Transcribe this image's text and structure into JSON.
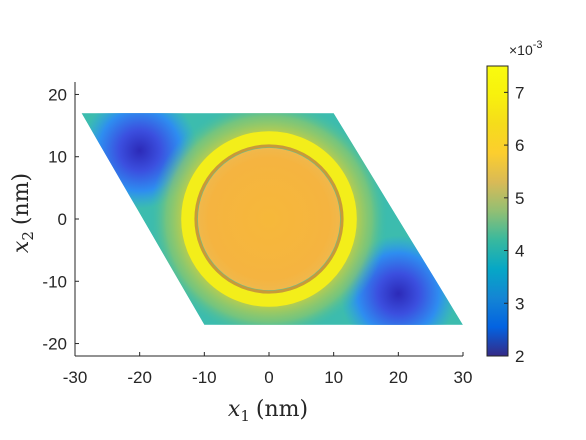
{
  "chart_data": {
    "type": "heatmap",
    "title": "",
    "xlabel": {
      "symbol": "x",
      "subscript": "1",
      "unit": "(nm)"
    },
    "ylabel": {
      "symbol": "x",
      "subscript": "2",
      "unit": "(nm)"
    },
    "xlim": [
      -30,
      30
    ],
    "ylim": [
      -22,
      22
    ],
    "xticks": [
      -30,
      -20,
      -10,
      0,
      10,
      20,
      30
    ],
    "yticks": [
      -20,
      -10,
      0,
      10,
      20
    ],
    "xtick_labels": [
      "-30",
      "-20",
      "-10",
      "0",
      "10",
      "20",
      "30"
    ],
    "ytick_labels": [
      "-20",
      "-10",
      "0",
      "10",
      "20"
    ],
    "domain": {
      "shape": "rhombus",
      "vertices": [
        [
          -29,
          17
        ],
        [
          10,
          17
        ],
        [
          30,
          -17
        ],
        [
          -10,
          -17
        ]
      ]
    },
    "features": [
      {
        "kind": "disk",
        "center": [
          0,
          0
        ],
        "radius": 11,
        "value": 0.0063
      },
      {
        "kind": "ring",
        "center": [
          0,
          0
        ],
        "radius": 12.5,
        "value": 0.0074
      },
      {
        "kind": "minimum",
        "center": [
          -20,
          11
        ],
        "value": 0.0021
      },
      {
        "kind": "minimum",
        "center": [
          20,
          -12
        ],
        "value": 0.0021
      }
    ],
    "background_value": 0.0049,
    "colorbar": {
      "colormap": "parula",
      "clim": [
        0.002,
        0.0075
      ],
      "ticks": [
        2,
        3,
        4,
        5,
        6,
        7
      ],
      "tick_labels": [
        "2",
        "3",
        "4",
        "5",
        "6",
        "7"
      ],
      "multiplier": {
        "base": "×10",
        "exponent": "-3"
      }
    }
  }
}
